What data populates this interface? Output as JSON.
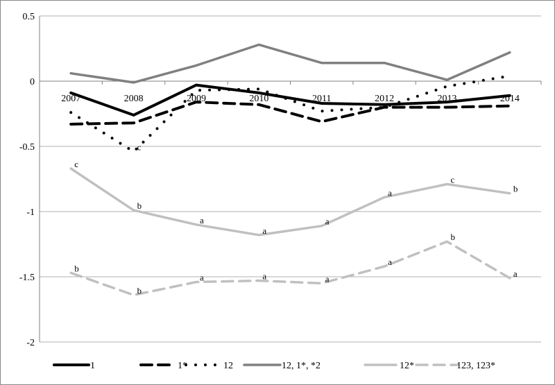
{
  "chart_data": {
    "type": "line",
    "title": "",
    "xlabel": "",
    "ylabel": "",
    "x": [
      "2007",
      "2008",
      "2009",
      "2010",
      "2011",
      "2012",
      "2013",
      "2014"
    ],
    "ylim": [
      -2,
      0.5
    ],
    "yticks": [
      0.5,
      0,
      -0.5,
      -1,
      -1.5,
      -2
    ],
    "ytick_labels": [
      "0.5",
      "0",
      "-0.5",
      "-1",
      "-1.5",
      "-2"
    ],
    "grid": "horizontal",
    "legend": "bottom",
    "series": [
      {
        "name": "1",
        "color": "#000000",
        "style": "solid",
        "values": [
          -0.09,
          -0.26,
          -0.03,
          -0.09,
          -0.17,
          -0.18,
          -0.16,
          -0.11
        ],
        "labels": [
          "",
          "",
          "",
          "",
          "",
          "",
          "",
          ""
        ]
      },
      {
        "name": "1*",
        "color": "#000000",
        "style": "dashed",
        "values": [
          -0.33,
          -0.32,
          -0.16,
          -0.18,
          -0.31,
          -0.2,
          -0.2,
          -0.19
        ],
        "labels": [
          "",
          "",
          "",
          "",
          "",
          "",
          "",
          ""
        ]
      },
      {
        "name": "12",
        "color": "#000000",
        "style": "dotted",
        "values": [
          -0.24,
          -0.54,
          -0.07,
          -0.06,
          -0.23,
          -0.2,
          -0.04,
          0.04
        ],
        "labels": [
          "",
          "c",
          "",
          "",
          "",
          "",
          "",
          ""
        ]
      },
      {
        "name": "12, 1*, *2",
        "color": "#808080",
        "style": "solid",
        "values": [
          0.06,
          -0.01,
          0.12,
          0.28,
          0.14,
          0.14,
          0.01,
          0.22
        ],
        "labels": [
          "",
          "",
          "",
          "",
          "",
          "",
          "",
          ""
        ]
      },
      {
        "name": "12*",
        "color": "#c0c0c0",
        "style": "solid",
        "values": [
          -0.67,
          -0.99,
          -1.1,
          -1.18,
          -1.11,
          -0.89,
          -0.79,
          -0.86
        ],
        "labels": [
          "c",
          "b",
          "a",
          "a",
          "a",
          "a",
          "c",
          "b"
        ]
      },
      {
        "name": "123, 123*",
        "color": "#c0c0c0",
        "style": "dashed",
        "values": [
          -1.47,
          -1.64,
          -1.54,
          -1.53,
          -1.55,
          -1.42,
          -1.23,
          -1.51
        ],
        "labels": [
          "b",
          "b",
          "a",
          "a",
          "a",
          "a",
          "b",
          "a"
        ]
      }
    ]
  }
}
